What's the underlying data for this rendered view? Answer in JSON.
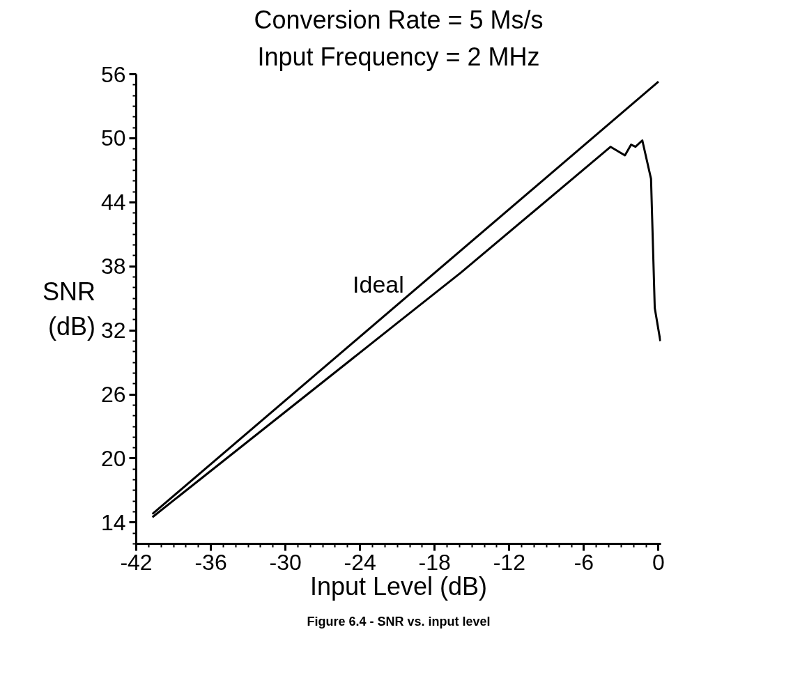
{
  "chart_data": {
    "type": "line",
    "title": "Conversion Rate = 5 Ms/s",
    "subtitle": "Input Frequency = 2 MHz",
    "xlabel": "Input Level (dB)",
    "ylabel": "SNR\n(dB)",
    "xlim": [
      -42,
      0.2
    ],
    "ylim": [
      12,
      56
    ],
    "xticks": [
      -42,
      -36,
      -30,
      -24,
      -18,
      -12,
      -6,
      0
    ],
    "yticks": [
      14,
      20,
      26,
      32,
      38,
      44,
      50,
      56
    ],
    "grid": false,
    "marker": "none",
    "line_style": "solid",
    "series": [
      {
        "name": "Ideal",
        "color": "#000000",
        "x": [
          -40.7,
          0
        ],
        "values": [
          14.8,
          55.3
        ]
      },
      {
        "color": "#000000",
        "x": [
          -40.7,
          -21.1,
          -15.9,
          -3.85,
          -2.7,
          -2.2,
          -1.85,
          -1.3,
          -0.6,
          -0.3,
          0.15
        ],
        "values": [
          14.5,
          32.6,
          37.4,
          49.2,
          48.4,
          49.4,
          49.2,
          49.8,
          46.2,
          34.1,
          31
        ]
      }
    ],
    "annotations": [
      "Figure 6.4 - SNR vs. input level"
    ]
  }
}
